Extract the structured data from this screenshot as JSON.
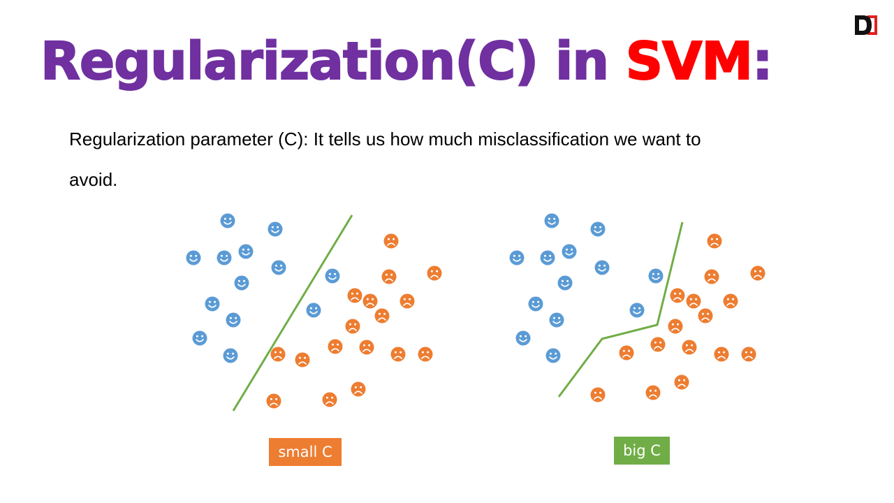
{
  "slide": {
    "title_part1": "Regularization(C) in ",
    "title_part2": "SVM",
    "title_part3": ":",
    "description_line1": "Regularization parameter (C): It tells us how much misclassification we want to",
    "description_line2": "avoid.",
    "logo_letter": "D"
  },
  "colors": {
    "title": "#7030a0",
    "accent": "#ff0000",
    "happy": "#5b9bd5",
    "sad": "#ed7d31",
    "boundary": "#70ad47"
  },
  "panels": [
    {
      "label": "small C",
      "label_color": "#ed7d31"
    },
    {
      "label": "big C",
      "label_color": "#70ad47"
    }
  ]
}
